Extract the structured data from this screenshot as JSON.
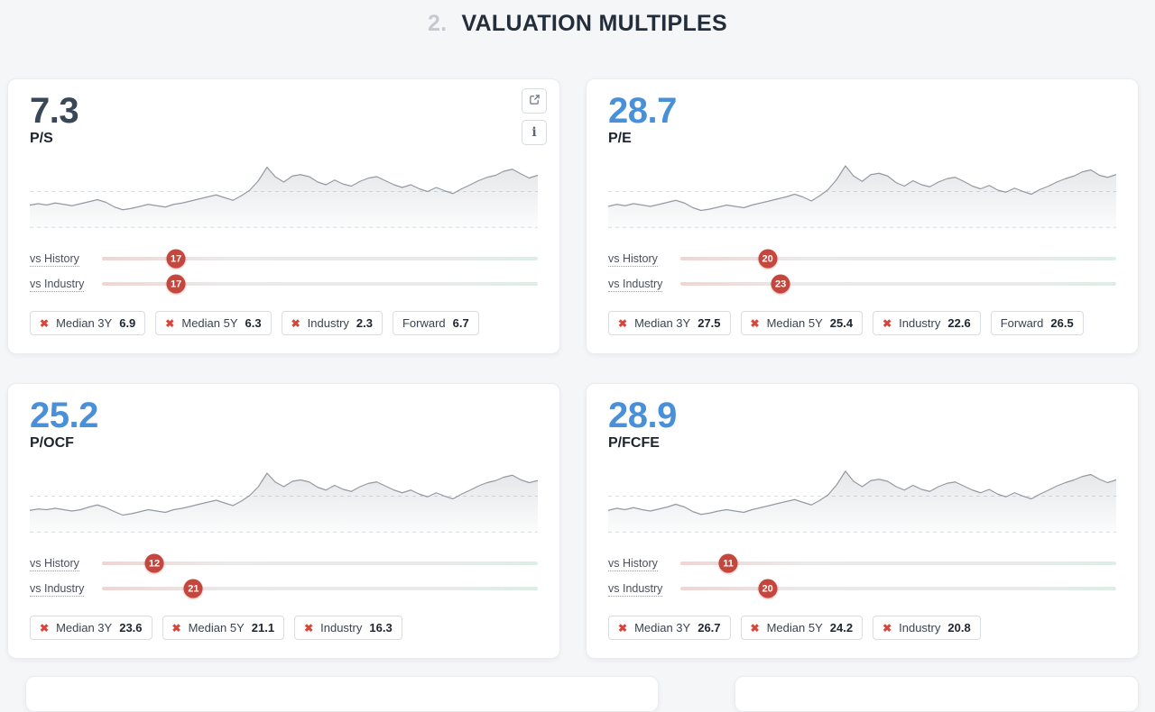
{
  "page": {
    "section_number": "2.",
    "title": "VALUATION MULTIPLES"
  },
  "colors": {
    "page_background": "#f5f6f8",
    "accent_blue": "#4a90d8",
    "dark_value": "#3a4757",
    "badge_red": "#c5463d",
    "chip_remove_red": "#d8453c",
    "spark_stroke": "#949aa3"
  },
  "chart": {
    "median_line_pct": 56,
    "base_line_pct": 3
  },
  "actions": {
    "info_glyph": "i"
  },
  "chip_remove_glyph": "✖",
  "cards": [
    {
      "value": "7.3",
      "metric": "P/S",
      "value_color": "#3a4757",
      "show_actions": true,
      "sliders": [
        {
          "label": "vs History",
          "value": 17
        },
        {
          "label": "vs Industry",
          "value": 17
        }
      ],
      "chips": [
        {
          "removable": true,
          "label": "Median 3Y",
          "value": "6.9"
        },
        {
          "removable": true,
          "label": "Median 5Y",
          "value": "6.3"
        },
        {
          "removable": true,
          "label": "Industry",
          "value": "2.3"
        },
        {
          "removable": false,
          "label": "Forward",
          "value": "6.7"
        }
      ],
      "chart_data": {
        "type": "area",
        "values": [
          36,
          38,
          36,
          39,
          37,
          35,
          38,
          41,
          44,
          40,
          33,
          29,
          31,
          34,
          37,
          35,
          33,
          37,
          39,
          42,
          45,
          48,
          51,
          47,
          43,
          50,
          58,
          72,
          92,
          78,
          70,
          79,
          81,
          78,
          70,
          66,
          73,
          67,
          64,
          71,
          76,
          78,
          72,
          66,
          62,
          66,
          60,
          56,
          62,
          57,
          53,
          60,
          66,
          72,
          77,
          80,
          86,
          89,
          82,
          76,
          80
        ]
      }
    },
    {
      "value": "28.7",
      "metric": "P/E",
      "value_color": "#4a90d8",
      "show_actions": false,
      "sliders": [
        {
          "label": "vs History",
          "value": 20
        },
        {
          "label": "vs Industry",
          "value": 23
        }
      ],
      "chips": [
        {
          "removable": true,
          "label": "Median 3Y",
          "value": "27.5"
        },
        {
          "removable": true,
          "label": "Median 5Y",
          "value": "25.4"
        },
        {
          "removable": true,
          "label": "Industry",
          "value": "22.6"
        },
        {
          "removable": false,
          "label": "Forward",
          "value": "26.5"
        }
      ],
      "chart_data": {
        "type": "area",
        "values": [
          34,
          37,
          35,
          38,
          36,
          34,
          37,
          40,
          43,
          39,
          32,
          28,
          30,
          33,
          36,
          34,
          32,
          36,
          39,
          42,
          45,
          48,
          52,
          48,
          42,
          50,
          59,
          74,
          94,
          79,
          71,
          81,
          83,
          79,
          69,
          64,
          72,
          66,
          63,
          70,
          75,
          77,
          71,
          64,
          60,
          65,
          58,
          55,
          61,
          56,
          52,
          59,
          64,
          70,
          75,
          79,
          85,
          88,
          80,
          77,
          81
        ]
      }
    },
    {
      "value": "25.2",
      "metric": "P/OCF",
      "value_color": "#4a90d8",
      "show_actions": false,
      "sliders": [
        {
          "label": "vs History",
          "value": 12
        },
        {
          "label": "vs Industry",
          "value": 21
        }
      ],
      "chips": [
        {
          "removable": true,
          "label": "Median 3Y",
          "value": "23.6"
        },
        {
          "removable": true,
          "label": "Median 5Y",
          "value": "21.1"
        },
        {
          "removable": true,
          "label": "Industry",
          "value": "16.3"
        }
      ],
      "chart_data": {
        "type": "area",
        "values": [
          35,
          37,
          36,
          38,
          36,
          34,
          36,
          40,
          43,
          39,
          33,
          28,
          30,
          33,
          36,
          34,
          32,
          36,
          38,
          41,
          44,
          47,
          50,
          46,
          42,
          49,
          57,
          70,
          90,
          77,
          70,
          78,
          80,
          77,
          69,
          65,
          72,
          66,
          63,
          70,
          75,
          77,
          71,
          65,
          61,
          65,
          59,
          55,
          61,
          56,
          52,
          59,
          65,
          71,
          76,
          79,
          84,
          87,
          80,
          76,
          79
        ]
      }
    },
    {
      "value": "28.9",
      "metric": "P/FCFE",
      "value_color": "#4a90d8",
      "show_actions": false,
      "sliders": [
        {
          "label": "vs History",
          "value": 11
        },
        {
          "label": "vs Industry",
          "value": 20
        }
      ],
      "chips": [
        {
          "removable": true,
          "label": "Median 3Y",
          "value": "26.7"
        },
        {
          "removable": true,
          "label": "Median 5Y",
          "value": "24.2"
        },
        {
          "removable": true,
          "label": "Industry",
          "value": "20.8"
        }
      ],
      "chart_data": {
        "type": "area",
        "values": [
          35,
          38,
          36,
          39,
          36,
          34,
          37,
          40,
          44,
          40,
          33,
          29,
          31,
          34,
          36,
          34,
          32,
          36,
          39,
          42,
          45,
          48,
          51,
          47,
          43,
          50,
          58,
          73,
          93,
          78,
          70,
          79,
          81,
          78,
          70,
          65,
          72,
          66,
          63,
          70,
          75,
          77,
          71,
          65,
          61,
          66,
          59,
          55,
          61,
          56,
          52,
          59,
          65,
          71,
          76,
          80,
          85,
          88,
          81,
          76,
          80
        ]
      }
    }
  ]
}
